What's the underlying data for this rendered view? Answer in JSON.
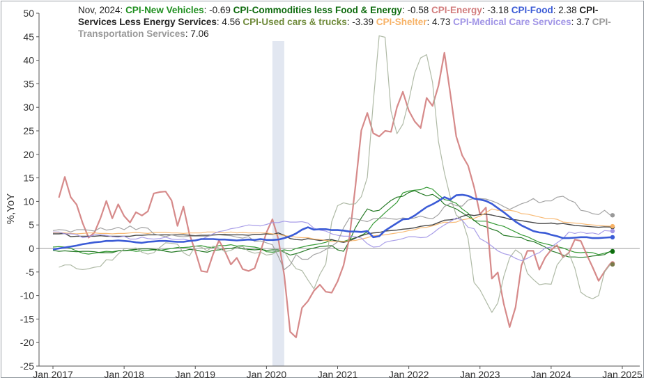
{
  "chart_data": {
    "type": "line",
    "ylabel": "%,YoY",
    "ylim": [
      -25,
      50
    ],
    "yticks": [
      50,
      45,
      40,
      35,
      30,
      25,
      20,
      15,
      10,
      5,
      0,
      -5,
      -10,
      -15,
      -20,
      -25
    ],
    "xticks": [
      "Jan 2017",
      "Jan 2018",
      "Jan 2019",
      "Jan 2020",
      "Jan 2021",
      "Jan 2022",
      "Jan 2023",
      "Jan 2024",
      "Jan 2025"
    ],
    "legend_date": "Nov, 2024",
    "shaded_region": {
      "from": "Feb 2020",
      "to": "Apr 2020"
    },
    "x_start": "Jan 2017",
    "x_end": "Jan 2025",
    "grid": false,
    "series": [
      {
        "name": "CPI-New Vehicles",
        "latest": "-0.69",
        "color": "#1f8f1f",
        "values": [
          0.3,
          0.4,
          0.3,
          0.0,
          -0.5,
          -1.0,
          -1.2,
          -1.0,
          -0.8,
          -0.6,
          -0.7,
          -0.5,
          -0.5,
          -0.4,
          -0.6,
          -0.5,
          -0.4,
          -0.3,
          -0.4,
          -0.2,
          0.0,
          0.2,
          0.2,
          0.3,
          0.5,
          0.6,
          0.3,
          0.2,
          0.6,
          0.6,
          0.8,
          0.5,
          0.6,
          0.4,
          0.3,
          0.0,
          -0.7,
          -0.8,
          -0.6,
          -0.3,
          -0.5,
          0.0,
          0.3,
          0.6,
          0.8,
          1.0,
          1.3,
          1.8,
          1.6,
          1.5,
          1.9,
          2.3,
          2.8,
          3.5,
          5.3,
          6.4,
          7.6,
          8.7,
          9.8,
          11.8,
          12.2,
          12.4,
          12.5,
          13.0,
          12.6,
          11.4,
          10.4,
          10.1,
          9.6,
          8.4,
          7.5,
          5.9,
          5.8,
          5.8,
          5.4,
          5.0,
          4.7,
          4.1,
          3.5,
          2.9,
          2.5,
          1.9,
          1.3,
          1.0,
          0.7,
          0.4,
          0.1,
          -0.4,
          -0.8,
          -0.9,
          -0.8,
          -0.9,
          -1.3,
          -1.0,
          -0.7
        ]
      },
      {
        "name": "CPI-Commodities less Food & Energy",
        "latest": "-0.58",
        "color": "#0e6b0e",
        "values": [
          -0.4,
          -0.6,
          -0.5,
          -0.6,
          -0.7,
          -0.6,
          -0.6,
          -0.7,
          -0.9,
          -0.9,
          -0.9,
          -0.5,
          -0.5,
          -0.3,
          -0.2,
          -0.1,
          -0.1,
          -0.2,
          -0.3,
          -0.6,
          -0.8,
          -0.6,
          -0.5,
          -0.2,
          -0.3,
          -0.6,
          -0.8,
          -0.4,
          -0.3,
          -0.1,
          0.0,
          0.3,
          -0.1,
          -0.2,
          -0.3,
          -0.2,
          -0.4,
          -0.3,
          -0.3,
          -0.8,
          -1.4,
          -1.1,
          -0.7,
          -0.2,
          0.1,
          0.4,
          0.5,
          0.6,
          -0.3,
          -0.6,
          1.6,
          4.4,
          6.5,
          8.4,
          7.9,
          8.1,
          9.2,
          10.2,
          10.9,
          11.1,
          11.9,
          12.3,
          11.7,
          11.2,
          11.5,
          10.7,
          9.4,
          8.9,
          8.4,
          7.6,
          6.8,
          6.0,
          5.0,
          4.6,
          4.1,
          3.7,
          2.8,
          2.6,
          2.4,
          2.3,
          1.7,
          1.5,
          0.9,
          0.3,
          -0.5,
          -0.9,
          -1.4,
          -1.8,
          -1.8,
          -1.9,
          -1.8,
          -1.6,
          -1.5,
          -1.3,
          -0.58
        ]
      },
      {
        "name": "CPI-Energy",
        "latest": "-3.18",
        "color": "#d27d7d",
        "values": [
          10.8,
          15.2,
          10.9,
          9.3,
          5.4,
          2.3,
          3.4,
          6.4,
          10.1,
          6.4,
          9.4,
          6.9,
          5.5,
          7.7,
          7.0,
          7.9,
          11.7,
          12.0,
          12.1,
          10.2,
          4.8,
          8.9,
          3.1,
          -0.6,
          -4.8,
          -5.0,
          -1.2,
          1.7,
          -0.6,
          -3.4,
          -2.0,
          -4.4,
          -4.8,
          -4.2,
          -0.6,
          3.4,
          6.2,
          2.0,
          -5.7,
          -17.7,
          -18.9,
          -12.6,
          -11.2,
          -9.0,
          -7.7,
          -9.2,
          -9.4,
          -7.0,
          -3.6,
          2.4,
          13.2,
          25.1,
          28.8,
          24.5,
          23.8,
          25.0,
          24.8,
          30.0,
          33.3,
          29.3,
          27.0,
          25.6,
          32.0,
          30.3,
          34.6,
          41.6,
          32.9,
          23.8,
          19.8,
          17.6,
          13.1,
          7.3,
          8.7,
          -6.4,
          -5.1,
          -11.7,
          -16.7,
          -12.5,
          -3.6,
          -0.5,
          -0.5,
          -4.5,
          -1.9,
          -0.3,
          0.7,
          -1.9,
          -0.9,
          1.9,
          1.6,
          -1.3,
          -4.0,
          -6.9,
          -4.9,
          -3.18
        ]
      },
      {
        "name": "CPI-Food",
        "latest": "2.38",
        "color": "#3b5bd6",
        "values": [
          -0.2,
          0.0,
          0.2,
          0.4,
          0.6,
          0.9,
          1.1,
          1.3,
          1.4,
          1.6,
          1.6,
          1.7,
          1.6,
          1.5,
          1.3,
          1.2,
          1.4,
          1.5,
          1.6,
          1.6,
          1.5,
          1.4,
          1.4,
          1.6,
          1.7,
          2.0,
          2.0,
          2.0,
          1.9,
          1.9,
          1.8,
          1.7,
          1.8,
          1.9,
          1.8,
          2.0,
          1.8,
          1.8,
          1.9,
          2.2,
          2.6,
          3.2,
          4.0,
          4.5,
          4.0,
          4.1,
          4.1,
          3.9,
          3.9,
          3.8,
          3.6,
          3.6,
          3.5,
          3.7,
          2.4,
          2.6,
          3.8,
          4.6,
          5.4,
          6.2,
          6.3,
          7.0,
          7.9,
          8.8,
          9.4,
          10.1,
          10.9,
          10.4,
          11.3,
          11.4,
          11.2,
          10.6,
          10.4,
          10.1,
          9.5,
          8.6,
          7.7,
          6.7,
          5.7,
          4.9,
          4.3,
          3.7,
          3.4,
          3.3,
          2.9,
          2.6,
          2.2,
          2.2,
          2.3,
          2.4,
          2.4,
          2.2,
          2.2,
          2.3,
          2.38
        ]
      },
      {
        "name": "CPI-Services Less Energy Services",
        "latest": "4.56",
        "color": "#333333",
        "values": [
          3.1,
          3.1,
          3.2,
          2.5,
          2.6,
          2.6,
          2.6,
          2.6,
          2.7,
          2.6,
          2.6,
          2.6,
          2.6,
          2.6,
          2.8,
          2.8,
          2.9,
          2.9,
          2.9,
          2.9,
          2.9,
          2.9,
          2.9,
          2.8,
          2.7,
          2.8,
          2.8,
          2.9,
          3.0,
          3.0,
          2.9,
          2.9,
          2.9,
          2.8,
          3.0,
          3.0,
          3.1,
          3.0,
          3.3,
          2.8,
          2.1,
          1.9,
          1.8,
          2.1,
          1.9,
          1.7,
          1.8,
          1.9,
          1.5,
          1.3,
          1.6,
          2.2,
          2.7,
          3.1,
          3.3,
          3.4,
          3.7,
          3.8,
          3.9,
          4.1,
          4.2,
          4.4,
          4.7,
          4.9,
          5.0,
          5.5,
          6.0,
          6.1,
          6.3,
          6.8,
          7.2,
          7.0,
          7.2,
          7.3,
          7.1,
          6.8,
          6.6,
          6.2,
          6.1,
          5.9,
          5.7,
          5.5,
          5.3,
          5.3,
          5.4,
          5.2,
          5.3,
          5.1,
          4.9,
          4.8,
          4.7,
          4.6,
          4.5,
          4.6,
          4.56
        ]
      },
      {
        "name": "CPI-Used cars & trucks",
        "latest": "-3.39",
        "color": "#a6b39c",
        "values": [
          -4.0,
          -3.5,
          -3.5,
          -4.3,
          -4.5,
          -4.3,
          -4.0,
          -3.8,
          -2.4,
          -2.5,
          -1.2,
          -0.1,
          0.0,
          0.1,
          -0.8,
          -1.2,
          -0.9,
          0.2,
          1.2,
          1.1,
          0.9,
          -0.9,
          -1.6,
          0.5,
          0.3,
          -0.5,
          0.5,
          0.1,
          -0.7,
          -0.4,
          0.2,
          0.4,
          -0.6,
          -1.0,
          -0.8,
          -1.4,
          -1.2,
          -0.5,
          -0.6,
          -2.7,
          -4.3,
          -4.7,
          -6.7,
          -8.6,
          -5.5,
          -3.3,
          5.7,
          9.1,
          9.7,
          9.4,
          9.5,
          11.0,
          15.1,
          31.0,
          45.2,
          44.9,
          29.2,
          24.4,
          26.4,
          31.4,
          37.3,
          40.5,
          41.2,
          35.3,
          22.7,
          16.1,
          10.9,
          7.1,
          6.1,
          2.1,
          -7.2,
          -8.8,
          -11.2,
          -13.6,
          -11.6,
          -6.0,
          -2.0,
          -0.3,
          -1.2,
          -5.3,
          -6.6,
          -7.7,
          -7.5,
          -7.6,
          -3.5,
          -1.9,
          -1.0,
          -4.2,
          -9.3,
          -10.2,
          -10.7,
          -10.0,
          -5.0,
          -3.39
        ]
      },
      {
        "name": "CPI-Shelter",
        "latest": "4.73",
        "color": "#f7b266",
        "values": [
          3.4,
          3.4,
          3.3,
          3.2,
          3.1,
          3.2,
          3.3,
          3.3,
          3.2,
          3.2,
          3.1,
          3.2,
          3.2,
          3.3,
          3.4,
          3.3,
          3.2,
          3.4,
          3.4,
          3.4,
          3.3,
          3.3,
          3.2,
          3.3,
          3.3,
          3.3,
          3.5,
          3.5,
          3.4,
          3.3,
          3.5,
          3.3,
          3.4,
          3.3,
          3.3,
          3.3,
          3.3,
          3.1,
          3.0,
          2.7,
          2.6,
          2.4,
          2.3,
          2.3,
          2.0,
          1.9,
          1.7,
          1.5,
          1.5,
          1.5,
          1.6,
          1.7,
          2.0,
          2.3,
          2.7,
          2.8,
          2.9,
          3.1,
          3.3,
          3.5,
          3.8,
          4.0,
          4.4,
          4.5,
          4.8,
          5.2,
          5.6,
          5.5,
          5.6,
          6.1,
          6.3,
          6.4,
          6.9,
          7.6,
          8.4,
          8.1,
          8.1,
          8.1,
          7.9,
          7.4,
          7.3,
          7.0,
          6.7,
          6.4,
          6.4,
          6.2,
          5.6,
          5.5,
          5.4,
          5.3,
          5.1,
          5.0,
          4.9,
          4.8,
          4.73
        ]
      },
      {
        "name": "CPI-Medical Care Services",
        "latest": "3.7",
        "color": "#a094e6",
        "values": [
          3.5,
          3.5,
          3.1,
          3.1,
          3.0,
          2.3,
          2.5,
          2.9,
          2.9,
          2.8,
          2.5,
          2.4,
          2.6,
          2.0,
          2.0,
          2.4,
          2.1,
          2.0,
          2.1,
          2.4,
          2.0,
          1.9,
          2.0,
          1.7,
          1.8,
          1.9,
          2.5,
          3.1,
          3.6,
          3.8,
          4.2,
          4.4,
          4.7,
          5.0,
          4.9,
          4.8,
          5.1,
          5.5,
          5.5,
          5.8,
          5.6,
          5.6,
          5.7,
          5.4,
          4.3,
          3.9,
          3.7,
          3.1,
          2.8,
          2.6,
          2.6,
          2.5,
          2.2,
          1.0,
          0.3,
          0.4,
          1.3,
          1.6,
          1.8,
          2.1,
          2.5,
          2.5,
          2.3,
          2.4,
          3.2,
          4.2,
          5.0,
          5.7,
          6.5,
          6.0,
          4.5,
          4.2,
          2.1,
          1.4,
          0.5,
          -0.5,
          -1.1,
          -1.4,
          -2.1,
          -2.6,
          -2.1,
          -1.4,
          -0.9,
          0.1,
          0.3,
          1.2,
          2.1,
          3.5,
          3.2,
          3.5,
          3.2,
          3.3,
          3.0,
          3.8,
          3.7
        ]
      },
      {
        "name": "CPI-Transportation Services",
        "latest": "7.06",
        "color": "#999999",
        "values": [
          3.8,
          4.0,
          3.9,
          3.5,
          4.0,
          4.0,
          3.9,
          3.7,
          4.4,
          3.9,
          4.1,
          4.5,
          4.0,
          4.8,
          4.0,
          4.5,
          4.3,
          3.1,
          2.8,
          2.5,
          2.9,
          2.6,
          2.5,
          2.6,
          2.6,
          2.6,
          2.6,
          2.8,
          2.9,
          2.8,
          2.7,
          2.4,
          2.2,
          2.5,
          1.5,
          1.6,
          1.2,
          0.8,
          -1.7,
          -4.5,
          -3.5,
          -1.3,
          -2.3,
          -2.3,
          -1.3,
          -0.9,
          -0.2,
          0.5,
          1.4,
          4.4,
          6.5,
          6.3,
          6.0,
          5.7,
          6.3,
          6.4,
          6.5,
          6.3,
          6.2,
          6.5,
          6.3,
          6.5,
          6.9,
          6.5,
          6.3,
          7.2,
          8.9,
          9.6,
          9.1,
          9.0,
          10.3,
          10.6,
          10.6,
          10.5,
          10.1,
          9.6,
          8.9,
          8.3,
          8.9,
          9.5,
          9.9,
          10.6,
          9.7,
          10.1,
          10.1,
          10.9,
          11.1,
          10.3,
          9.8,
          8.1,
          7.9,
          7.4,
          7.2,
          8.1,
          7.06
        ]
      }
    ]
  }
}
